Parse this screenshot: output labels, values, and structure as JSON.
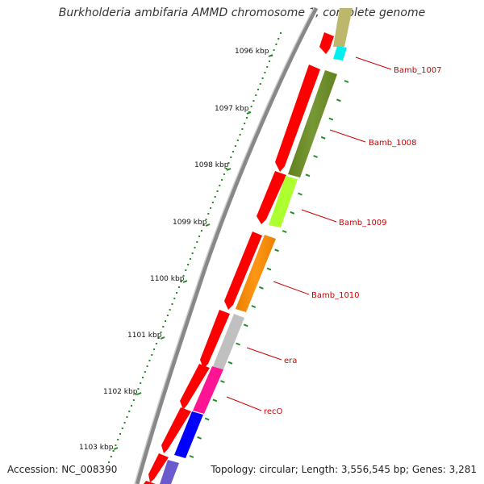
{
  "title": "Burkholderia ambifaria AMMD chromosome 1, complete genome",
  "accession_label": "Accession: NC_008390",
  "summary_label": "Topology: circular; Length: 3,556,545 bp; Genes: 3,281",
  "scale_labels": [
    {
      "text": "1096 kbp"
    },
    {
      "text": "1097 kbp"
    },
    {
      "text": "1098 kbp"
    },
    {
      "text": "1099 kbp"
    },
    {
      "text": "1100 kbp"
    },
    {
      "text": "1101 kbp"
    },
    {
      "text": "1102 kbp"
    },
    {
      "text": "1103 kbp"
    }
  ],
  "genes": [
    {
      "name": "Bamb_1007",
      "color": "#00f0f0"
    },
    {
      "name": "Bamb_1008",
      "color": "#6b8e23"
    },
    {
      "name": "Bamb_1009",
      "color": "#adff2f"
    },
    {
      "name": "Bamb_1010",
      "color": "#ff8c00"
    },
    {
      "name": "era",
      "color": "#c0c0c0"
    },
    {
      "name": "recO",
      "color": "#ff1493"
    }
  ],
  "colors": {
    "cds_strand": "#ff0000",
    "label_line": "#cc0000",
    "tick_green": "#228b22",
    "backbone": "#808080",
    "extra_blue": "#0000ff",
    "extra_purple": "#6a5acd",
    "extra_khaki": "#bdb76b"
  }
}
